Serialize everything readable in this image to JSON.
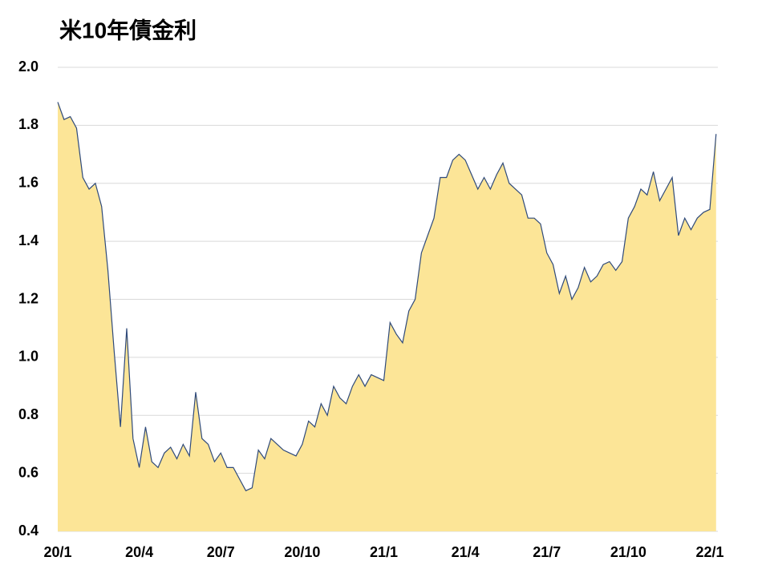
{
  "chart_data": {
    "type": "area",
    "title": "米10年債金利",
    "categories": [
      "20/1",
      null,
      null,
      null,
      null,
      null,
      null,
      null,
      null,
      null,
      null,
      null,
      null,
      "20/4",
      null,
      null,
      null,
      null,
      null,
      null,
      null,
      null,
      null,
      null,
      null,
      null,
      "20/7",
      null,
      null,
      null,
      null,
      null,
      null,
      null,
      null,
      null,
      null,
      null,
      null,
      "20/10",
      null,
      null,
      null,
      null,
      null,
      null,
      null,
      null,
      null,
      null,
      null,
      null,
      "21/1",
      null,
      null,
      null,
      null,
      null,
      null,
      null,
      null,
      null,
      null,
      null,
      null,
      "21/4",
      null,
      null,
      null,
      null,
      null,
      null,
      null,
      null,
      null,
      null,
      null,
      null,
      "21/7",
      null,
      null,
      null,
      null,
      null,
      null,
      null,
      null,
      null,
      null,
      null,
      null,
      "21/10",
      null,
      null,
      null,
      null,
      null,
      null,
      null,
      null,
      null,
      null,
      null,
      null,
      "22/1",
      null
    ],
    "values": [
      1.88,
      1.82,
      1.83,
      1.79,
      1.62,
      1.58,
      1.6,
      1.52,
      1.3,
      1.02,
      0.76,
      1.1,
      0.72,
      0.62,
      0.76,
      0.64,
      0.62,
      0.67,
      0.69,
      0.65,
      0.7,
      0.66,
      0.88,
      0.72,
      0.7,
      0.64,
      0.67,
      0.62,
      0.62,
      0.58,
      0.54,
      0.55,
      0.68,
      0.65,
      0.72,
      0.7,
      0.68,
      0.67,
      0.66,
      0.7,
      0.78,
      0.76,
      0.84,
      0.8,
      0.9,
      0.86,
      0.84,
      0.9,
      0.94,
      0.9,
      0.94,
      0.93,
      0.92,
      1.12,
      1.08,
      1.05,
      1.16,
      1.2,
      1.36,
      1.42,
      1.48,
      1.62,
      1.62,
      1.68,
      1.7,
      1.68,
      1.63,
      1.58,
      1.62,
      1.58,
      1.63,
      1.67,
      1.6,
      1.58,
      1.56,
      1.48,
      1.48,
      1.46,
      1.36,
      1.32,
      1.22,
      1.28,
      1.2,
      1.24,
      1.31,
      1.26,
      1.28,
      1.32,
      1.33,
      1.3,
      1.33,
      1.48,
      1.52,
      1.58,
      1.56,
      1.64,
      1.54,
      1.58,
      1.62,
      1.42,
      1.48,
      1.44,
      1.48,
      1.5,
      1.51,
      1.77
    ],
    "color": "#fce597",
    "line_color": "#2f4a7a",
    "ylim": [
      0.4,
      2.0
    ],
    "yticks": [
      {
        "value": 0.4,
        "label": "0.4"
      },
      {
        "value": 0.6,
        "label": "0.6"
      },
      {
        "value": 0.8,
        "label": "0.8"
      },
      {
        "value": 1.0,
        "label": "1.0"
      },
      {
        "value": 1.2,
        "label": "1.2"
      },
      {
        "value": 1.4,
        "label": "1.4"
      },
      {
        "value": 1.6,
        "label": "1.6"
      },
      {
        "value": 1.8,
        "label": "1.8"
      },
      {
        "value": 2.0,
        "label": "2.0"
      }
    ],
    "grid": true
  }
}
